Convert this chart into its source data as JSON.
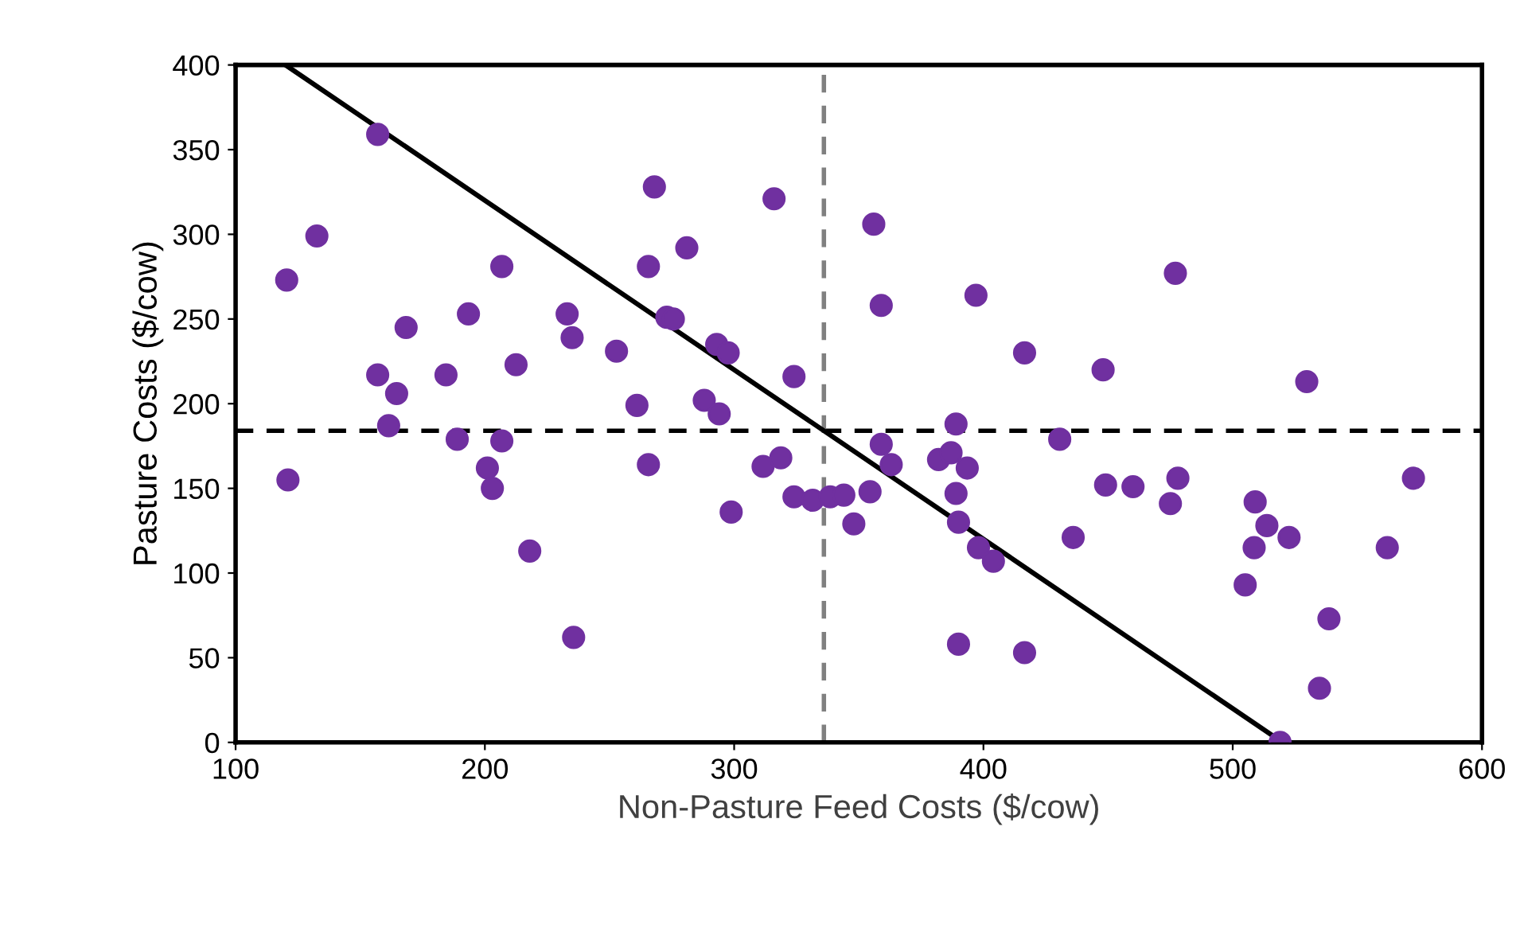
{
  "chart_data": {
    "type": "scatter",
    "xlabel": "Non-Pasture Feed Costs ($/cow)",
    "ylabel": "Pasture Costs ($/cow)",
    "xlim": [
      100,
      600
    ],
    "xticks": [
      100,
      200,
      300,
      400,
      500,
      600
    ],
    "ylim": [
      0,
      400
    ],
    "yticks": [
      0,
      50,
      100,
      150,
      200,
      250,
      300,
      350,
      400
    ],
    "grid": false,
    "legend": false,
    "marker": "circle",
    "series": [
      {
        "color": "#7030a0",
        "x": [
          120.5,
          121,
          132.6,
          157,
          157,
          161.4,
          164.6,
          168.4,
          184.4,
          188.9,
          193.4,
          201,
          203,
          206.8,
          206.8,
          212.5,
          218,
          233,
          235,
          235.6,
          252.8,
          261,
          265.6,
          265.6,
          268,
          273,
          275.6,
          281,
          288,
          293,
          294,
          297.6,
          298.8,
          311.6,
          316,
          318.7,
          324,
          324,
          331.5,
          338.5,
          344,
          348,
          354.5,
          356,
          359,
          359,
          363,
          382,
          387,
          389,
          389,
          390,
          390,
          393.5,
          397,
          398,
          404,
          416.5,
          416.5,
          430.6,
          436,
          448,
          449,
          460,
          475,
          477,
          478,
          505,
          508.6,
          509,
          513.7,
          519,
          522.6,
          529.7,
          538.6,
          534.8,
          562,
          572.5
        ],
        "values": [
          273,
          155,
          299,
          359,
          217,
          187,
          206,
          245,
          217,
          179,
          253,
          162,
          150,
          281,
          178,
          223,
          113,
          253,
          239,
          62,
          231,
          199,
          281,
          164,
          328,
          251,
          250,
          292,
          202,
          235,
          194,
          230,
          136,
          163,
          321,
          168,
          216,
          145,
          143,
          145,
          146,
          129,
          148,
          306,
          258,
          176,
          164,
          167,
          171,
          188,
          147,
          130,
          58,
          162,
          264,
          115,
          107,
          230,
          53,
          179,
          121,
          220,
          152,
          151,
          141,
          277,
          156,
          93,
          115,
          142,
          128,
          0,
          121,
          213,
          73,
          32,
          115,
          156
        ]
      },
      {
        "type": "line",
        "color": "#000000",
        "line_style": "solid",
        "marker": "none",
        "x": [
          120,
          520
        ],
        "values": [
          400,
          0
        ]
      }
    ],
    "ref_lines": [
      {
        "axis": "y",
        "value": 184,
        "color": "#000000",
        "line_style": "dashed"
      },
      {
        "axis": "x",
        "value": 336,
        "color": "#808080",
        "line_style": "dashed"
      }
    ]
  }
}
